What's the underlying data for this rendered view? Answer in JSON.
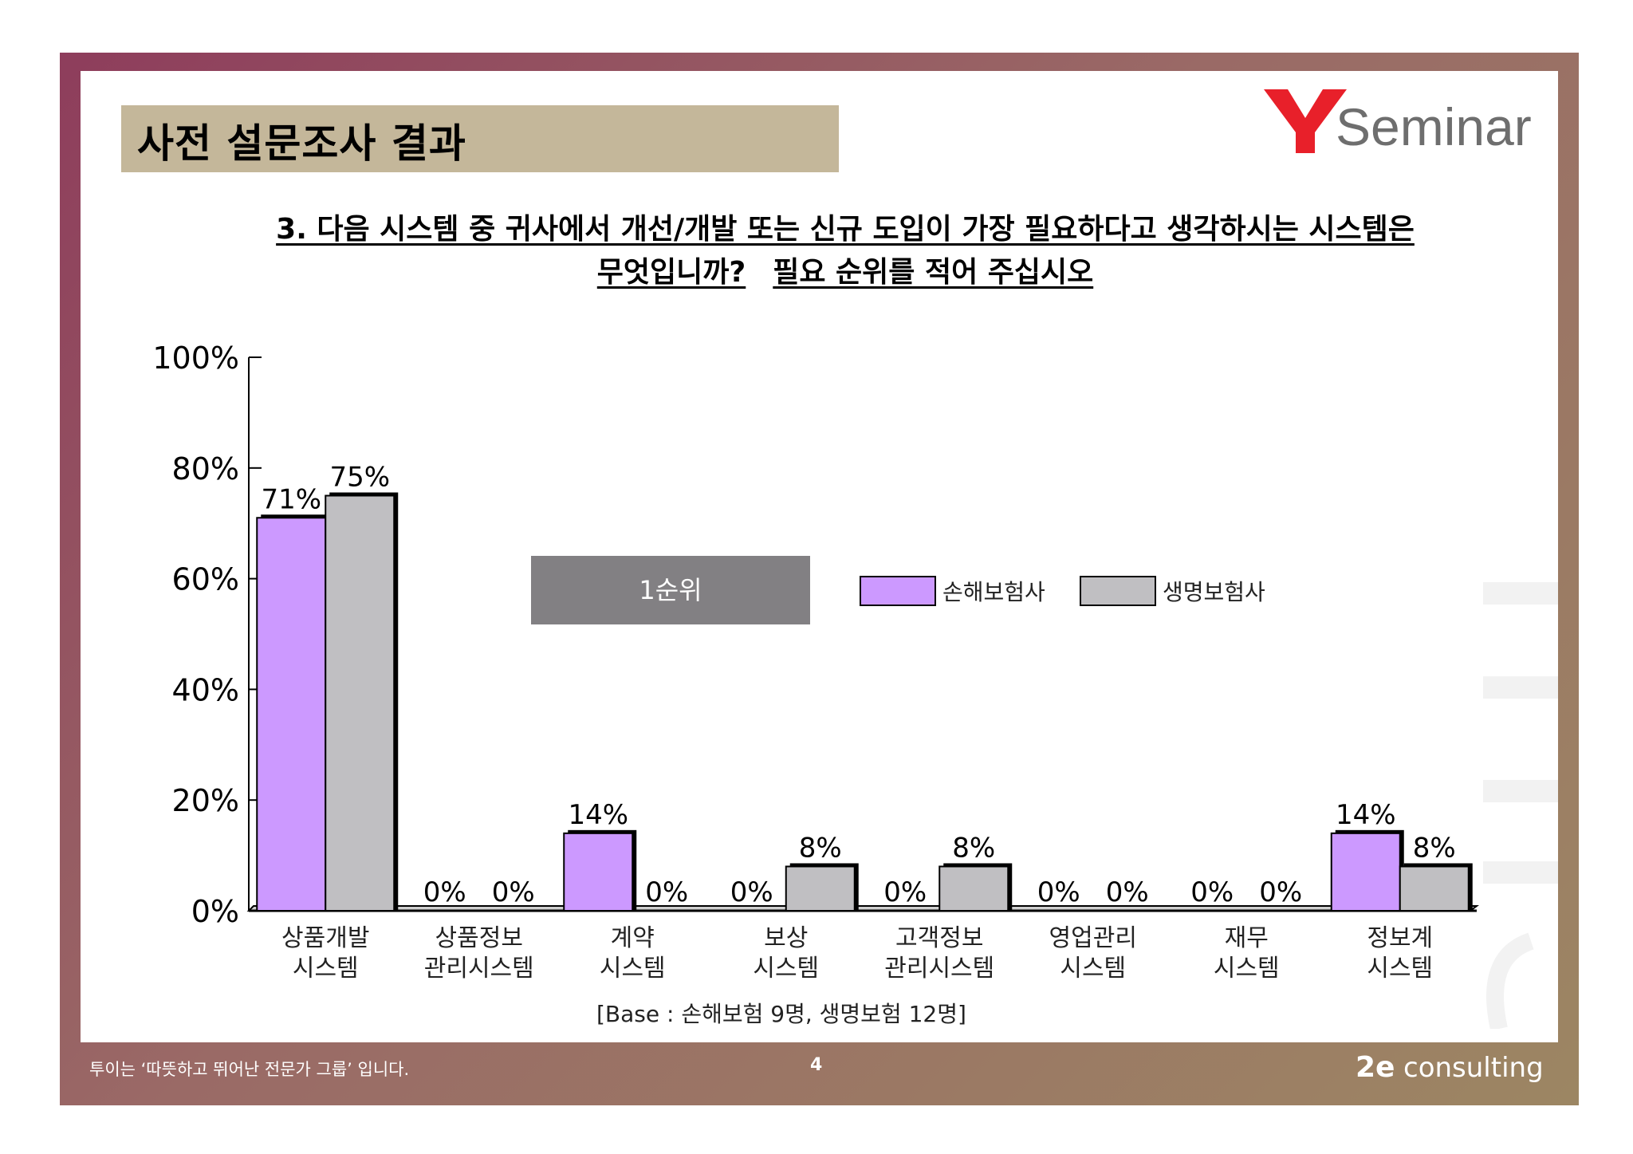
{
  "header": {
    "title": "사전 설문조사 결과",
    "logo_letter": "Y",
    "logo_text": "Seminar"
  },
  "question": {
    "line1": "3. 다음 시스템 중 귀사에서 개선/개발 또는 신규 도입이 가장 필요하다고 생각하시는 시스템은",
    "line2_a": "무엇입니까?",
    "line2_b": "필요 순위를 적어 주십시오"
  },
  "rank_label": "1순위",
  "base_note": "[Base :  손해보험 9명, 생명보험  12명]",
  "footer": {
    "slogan": "투이는 ‘따뜻하고 뛰어난 전문가 그룹’ 입니다.",
    "page": "4",
    "brand": "consulting"
  },
  "colors": {
    "series1": "#cc99ff",
    "series2": "#c0bfc2",
    "frame": "#8e3d5c",
    "title_bar": "#c4b79a",
    "logo_red": "#e8202a",
    "logo_gray": "#6e6e6e"
  },
  "chart_data": {
    "type": "bar",
    "categories": [
      [
        "상품개발",
        "시스템"
      ],
      [
        "상품정보",
        "관리시스템"
      ],
      [
        "계약",
        "시스템"
      ],
      [
        "보상",
        "시스템"
      ],
      [
        "고객정보",
        "관리시스템"
      ],
      [
        "영업관리",
        "시스템"
      ],
      [
        "재무",
        "시스템"
      ],
      [
        "정보계",
        "시스템"
      ]
    ],
    "series": [
      {
        "name": "손해보험사",
        "values": [
          71,
          0,
          14,
          0,
          0,
          0,
          0,
          14
        ]
      },
      {
        "name": "생명보험사",
        "values": [
          75,
          0,
          0,
          8,
          8,
          0,
          0,
          8
        ]
      }
    ],
    "data_labels": [
      [
        "71%",
        "0%",
        "14%",
        "0%",
        "0%",
        "0%",
        "0%",
        "14%"
      ],
      [
        "75%",
        "0%",
        "0%",
        "8%",
        "8%",
        "0%",
        "0%",
        "8%"
      ]
    ],
    "y_ticks": [
      "0%",
      "20%",
      "40%",
      "60%",
      "80%",
      "100%"
    ],
    "ylim": [
      0,
      100
    ],
    "legend_position": "top-right",
    "grid": false
  }
}
